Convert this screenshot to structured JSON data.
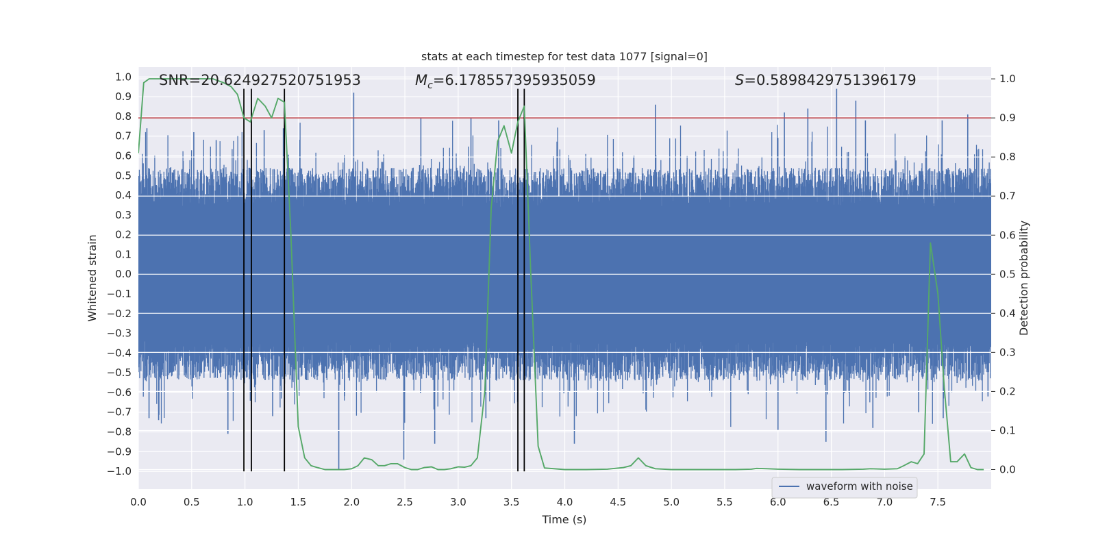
{
  "chart_data": {
    "type": "line",
    "title": "stats at each timestep for test data 1077 [signal=0]",
    "xlabel": "Time (s)",
    "ylabel": "Whitened strain",
    "y2label": "Detection probability",
    "xlim": [
      0.0,
      8.0
    ],
    "ylim": [
      -1.09,
      1.05
    ],
    "y2lim": [
      -0.05,
      1.03
    ],
    "x_ticks": [
      0.0,
      0.5,
      1.0,
      1.5,
      2.0,
      2.5,
      3.0,
      3.5,
      4.0,
      4.5,
      5.0,
      5.5,
      6.0,
      6.5,
      7.0,
      7.5
    ],
    "x_tick_labels": [
      "0.0",
      "0.5",
      "1.0",
      "1.5",
      "2.0",
      "2.5",
      "3.0",
      "3.5",
      "4.0",
      "4.5",
      "5.0",
      "5.5",
      "6.0",
      "6.5",
      "7.0",
      "7.5"
    ],
    "y_ticks": [
      1.0,
      0.9,
      0.8,
      0.7,
      0.6,
      0.5,
      0.4,
      0.3,
      0.2,
      0.1,
      0.0,
      -0.1,
      -0.2,
      -0.3,
      -0.4,
      -0.5,
      -0.6,
      -0.7,
      -0.8,
      -0.9,
      -1.0
    ],
    "y_tick_labels": [
      "1.0",
      "0.9",
      "0.8",
      "0.7",
      "0.6",
      "0.5",
      "0.4",
      "0.3",
      "0.2",
      "0.1",
      "0.0",
      "−0.1",
      "−0.2",
      "−0.3",
      "−0.4",
      "−0.5",
      "−0.6",
      "−0.7",
      "−0.8",
      "−0.9",
      "−1.0"
    ],
    "y2_ticks": [
      1.0,
      0.9,
      0.8,
      0.7,
      0.6,
      0.5,
      0.4,
      0.3,
      0.2,
      0.1,
      0.0
    ],
    "y2_tick_labels": [
      "1.0",
      "0.9",
      "0.8",
      "0.7",
      "0.6",
      "0.5",
      "0.4",
      "0.3",
      "0.2",
      "0.1",
      "0.0"
    ],
    "annotations": {
      "snr": "SNR=20.624927520751953",
      "mc_symbol": "M",
      "mc_sub": "c",
      "mc_value": "=6.178557395935059",
      "s_symbol": "S",
      "s_value": "=0.5898429751396179"
    },
    "threshold": {
      "value": 0.9,
      "axis": "y2",
      "color": "#c44e52"
    },
    "vlines_x": [
      0.99,
      1.06,
      1.37,
      3.56,
      3.62
    ],
    "vline_range": [
      -1.0,
      0.94
    ],
    "series": [
      {
        "name": "waveform with noise",
        "axis": "y",
        "style": "dense noise",
        "color": "#4c72b0",
        "envelope": {
          "typical_max": 0.45,
          "typical_min": -0.45
        },
        "spikes": [
          {
            "x": 0.08,
            "y": 0.74
          },
          {
            "x": 0.52,
            "y": 0.72
          },
          {
            "x": 0.73,
            "y": 0.68
          },
          {
            "x": 1.18,
            "y": 0.73
          },
          {
            "x": 1.36,
            "y": 0.74
          },
          {
            "x": 2.02,
            "y": 0.92
          },
          {
            "x": 2.65,
            "y": 0.79
          },
          {
            "x": 3.12,
            "y": 0.79
          },
          {
            "x": 3.38,
            "y": 0.78
          },
          {
            "x": 4.85,
            "y": 0.86
          },
          {
            "x": 6.06,
            "y": 0.82
          },
          {
            "x": 6.28,
            "y": 0.84
          },
          {
            "x": 6.55,
            "y": 0.94
          },
          {
            "x": 6.73,
            "y": 0.88
          },
          {
            "x": 6.82,
            "y": 0.78
          },
          {
            "x": 7.54,
            "y": 0.78
          },
          {
            "x": 7.78,
            "y": 0.81
          },
          {
            "x": 0.1,
            "y": -0.73
          },
          {
            "x": 0.19,
            "y": -0.74
          },
          {
            "x": 0.84,
            "y": -0.81
          },
          {
            "x": 1.26,
            "y": -0.72
          },
          {
            "x": 1.88,
            "y": -0.99
          },
          {
            "x": 2.49,
            "y": -0.94
          },
          {
            "x": 2.78,
            "y": -0.86
          },
          {
            "x": 3.26,
            "y": -0.73
          },
          {
            "x": 4.09,
            "y": -0.86
          },
          {
            "x": 6.0,
            "y": -0.79
          },
          {
            "x": 6.45,
            "y": -0.85
          },
          {
            "x": 6.89,
            "y": -0.78
          },
          {
            "x": 7.32,
            "y": -0.7
          },
          {
            "x": 7.55,
            "y": -0.73
          },
          {
            "x": 7.97,
            "y": -0.62
          }
        ]
      },
      {
        "name": "Detection probability",
        "axis": "y2",
        "color": "#55a868",
        "x": [
          0.0,
          0.05,
          0.1,
          0.15,
          0.2,
          0.3,
          0.4,
          0.5,
          0.6,
          0.7,
          0.8,
          0.87,
          0.93,
          0.99,
          1.05,
          1.12,
          1.19,
          1.25,
          1.31,
          1.37,
          1.43,
          1.5,
          1.56,
          1.62,
          1.68,
          1.75,
          1.81,
          1.87,
          1.93,
          2.0,
          2.06,
          2.12,
          2.19,
          2.25,
          2.31,
          2.37,
          2.43,
          2.5,
          2.56,
          2.62,
          2.68,
          2.75,
          2.81,
          2.87,
          2.93,
          3.0,
          3.06,
          3.12,
          3.18,
          3.25,
          3.31,
          3.37,
          3.43,
          3.5,
          3.56,
          3.62,
          3.68,
          3.75,
          3.81,
          4.0,
          4.2,
          4.4,
          4.55,
          4.62,
          4.69,
          4.76,
          4.85,
          5.0,
          5.2,
          5.4,
          5.6,
          5.75,
          5.8,
          5.9,
          6.0,
          6.2,
          6.4,
          6.6,
          6.8,
          6.87,
          7.0,
          7.12,
          7.18,
          7.25,
          7.31,
          7.37,
          7.43,
          7.5,
          7.56,
          7.62,
          7.68,
          7.75,
          7.81,
          7.87,
          7.93
        ],
        "y": [
          0.81,
          0.99,
          1.0,
          1.0,
          1.0,
          1.0,
          1.0,
          1.0,
          1.0,
          1.0,
          0.99,
          0.98,
          0.96,
          0.9,
          0.89,
          0.95,
          0.93,
          0.9,
          0.95,
          0.94,
          0.61,
          0.11,
          0.03,
          0.01,
          0.005,
          0.0,
          0.0,
          0.0,
          0.0,
          0.002,
          0.01,
          0.03,
          0.025,
          0.01,
          0.01,
          0.015,
          0.015,
          0.005,
          0.0,
          0.0,
          0.005,
          0.007,
          0.0,
          0.0,
          0.002,
          0.007,
          0.006,
          0.01,
          0.03,
          0.2,
          0.67,
          0.84,
          0.88,
          0.81,
          0.89,
          0.93,
          0.51,
          0.06,
          0.004,
          0.0,
          0.0,
          0.001,
          0.005,
          0.01,
          0.03,
          0.01,
          0.002,
          0.0,
          0.0,
          0.0,
          0.0,
          0.001,
          0.003,
          0.002,
          0.001,
          0.0,
          0.0,
          0.0,
          0.001,
          0.002,
          0.001,
          0.002,
          0.01,
          0.02,
          0.015,
          0.04,
          0.58,
          0.45,
          0.21,
          0.02,
          0.02,
          0.04,
          0.005,
          0.0,
          0.0
        ]
      }
    ],
    "legend": {
      "entries": [
        "waveform with noise"
      ],
      "position": "lower right"
    }
  }
}
